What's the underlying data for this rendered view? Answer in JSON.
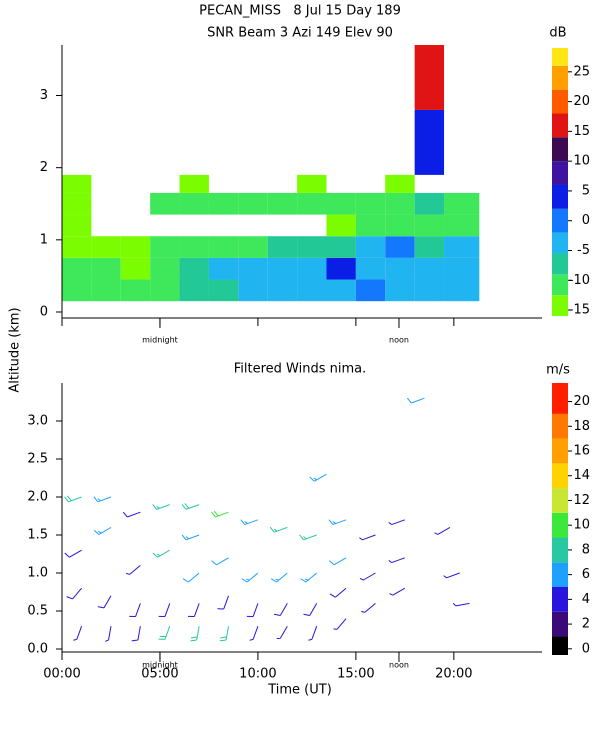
{
  "chart_data": [
    {
      "type": "heatmap",
      "title": "PECAN_MISS   8 Jul 15 Day 189",
      "subtitle": "SNR Beam 3 Azi 149 Elev 90",
      "ylabel": "Altitude (km)",
      "xlim": [
        0,
        24.5
      ],
      "ylim": [
        0,
        3.7
      ],
      "yticks": [
        0,
        1,
        2,
        3
      ],
      "x_edges": [
        0,
        1.5,
        3,
        4.5,
        6,
        7.5,
        9,
        10.5,
        12,
        13.5,
        15,
        16.5,
        18,
        19.5,
        21.3
      ],
      "y_edges": [
        0.15,
        0.45,
        0.75,
        1.05,
        1.35,
        1.65,
        1.9,
        2.8,
        3.7
      ],
      "z": [
        [
          -10,
          -10,
          -12,
          -10,
          -8,
          -7,
          -5,
          -5,
          -5,
          -3,
          0,
          -5,
          -5,
          -5
        ],
        [
          -12,
          -12,
          -13,
          -10,
          -8,
          -5,
          -5,
          -5,
          -3,
          2,
          -5,
          -5,
          -5,
          -5
        ],
        [
          -13,
          -13,
          -14,
          -12,
          -10,
          -10,
          -10,
          -7,
          -7,
          -7,
          -5,
          0,
          -7,
          -3
        ],
        [
          -14,
          null,
          null,
          null,
          null,
          null,
          null,
          null,
          null,
          -14,
          -12,
          -10,
          -10,
          -12
        ],
        [
          -14,
          null,
          null,
          -12,
          -12,
          -12,
          -12,
          -12,
          -12,
          -12,
          -12,
          -10,
          -8,
          -12
        ],
        [
          -15,
          null,
          null,
          null,
          -14,
          null,
          null,
          null,
          -15,
          null,
          null,
          -14,
          null,
          null
        ],
        [
          null,
          null,
          null,
          null,
          null,
          null,
          null,
          null,
          null,
          null,
          null,
          null,
          5,
          null
        ],
        [
          null,
          null,
          null,
          null,
          null,
          null,
          null,
          null,
          null,
          null,
          null,
          null,
          15,
          null
        ]
      ],
      "annotations": [
        {
          "x": 5.0,
          "text": "midnight"
        },
        {
          "x": 17.2,
          "text": "noon"
        }
      ],
      "colorbar": {
        "label": "dB",
        "lim": [
          -16,
          29
        ],
        "ticks": [
          -15,
          -10,
          -5,
          0,
          5,
          10,
          15,
          20,
          25
        ],
        "levels": [
          -16,
          -12.5,
          -9,
          -5.5,
          -2,
          2,
          6,
          10,
          14,
          18,
          22,
          26,
          29
        ],
        "colors": [
          "#7cfc00",
          "#3ee85a",
          "#22c896",
          "#20b4f0",
          "#1478ff",
          "#0a1ee6",
          "#3c14a0",
          "#3c0a50",
          "#e01414",
          "#ff5a00",
          "#ffa000",
          "#ffe614"
        ]
      }
    },
    {
      "type": "barbs",
      "title": "Filtered Winds nima.",
      "xlabel": "Time (UT)",
      "xlim": [
        0,
        24.5
      ],
      "ylim": [
        0,
        3.5
      ],
      "xticks": [
        {
          "value": 0,
          "label": "00:00"
        },
        {
          "value": 5,
          "label": "05:00"
        },
        {
          "value": 10,
          "label": "10:00"
        },
        {
          "value": 15,
          "label": "15:00"
        },
        {
          "value": 20,
          "label": "20:00"
        }
      ],
      "yticks": [
        {
          "value": 0,
          "label": "0.0"
        },
        {
          "value": 0.5,
          "label": "0.5"
        },
        {
          "value": 1,
          "label": "1.0"
        },
        {
          "value": 1.5,
          "label": "1.5"
        },
        {
          "value": 2,
          "label": "2.0"
        },
        {
          "value": 2.5,
          "label": "2.5"
        },
        {
          "value": 3,
          "label": "3.0"
        }
      ],
      "x": [
        1,
        1,
        1,
        1,
        2.5,
        2.5,
        2.5,
        2.5,
        4,
        4,
        4,
        4,
        5.5,
        5.5,
        5.5,
        5.5,
        7,
        7,
        7,
        7,
        7,
        8.5,
        8.5,
        8.5,
        8.5,
        10,
        10,
        10,
        10,
        11.5,
        11.5,
        11.5,
        11.5,
        13,
        13,
        13,
        13,
        13.5,
        14.5,
        14.5,
        14.5,
        14.5,
        16,
        16,
        16,
        17.5,
        17.5,
        17.5,
        18.5,
        19.8,
        20.3,
        20.8
      ],
      "y": [
        0.3,
        0.8,
        1.3,
        2.0,
        0.3,
        0.7,
        1.6,
        2.0,
        0.3,
        0.6,
        1.1,
        1.8,
        0.3,
        0.6,
        1.3,
        1.9,
        0.3,
        0.6,
        1.0,
        1.5,
        1.9,
        0.3,
        0.7,
        1.2,
        1.8,
        0.3,
        0.6,
        1.0,
        1.7,
        0.3,
        0.6,
        1.0,
        1.6,
        0.3,
        0.6,
        1.0,
        1.5,
        2.3,
        0.4,
        0.8,
        1.2,
        1.7,
        0.6,
        1.0,
        1.5,
        0.8,
        1.2,
        1.7,
        3.3,
        1.6,
        1.0,
        0.6
      ],
      "speed": [
        3,
        4,
        4,
        8,
        3,
        4,
        6,
        6,
        4,
        4,
        3,
        4,
        8,
        4,
        7,
        7,
        8,
        4,
        5,
        6,
        8,
        8,
        4,
        5,
        9,
        3,
        4,
        6,
        6,
        3,
        4,
        6,
        7,
        3,
        4,
        6,
        7,
        6,
        3,
        4,
        5,
        6,
        3,
        3,
        3,
        3,
        3,
        3,
        5,
        3,
        3,
        3
      ],
      "direction": [
        200,
        220,
        240,
        250,
        190,
        210,
        240,
        250,
        190,
        200,
        230,
        250,
        200,
        200,
        240,
        250,
        190,
        200,
        230,
        250,
        250,
        190,
        200,
        240,
        250,
        200,
        200,
        230,
        250,
        210,
        210,
        230,
        250,
        200,
        210,
        230,
        250,
        240,
        220,
        230,
        240,
        250,
        230,
        240,
        250,
        240,
        250,
        250,
        250,
        240,
        250,
        260
      ],
      "annotations": [
        {
          "x": 5.0,
          "text": "midnight"
        },
        {
          "x": 17.2,
          "text": "noon"
        }
      ],
      "colorbar": {
        "label": "m/s",
        "lim": [
          -0.5,
          21.5
        ],
        "ticks": [
          0,
          2,
          4,
          6,
          8,
          10,
          12,
          14,
          16,
          18,
          20
        ],
        "levels": [
          -0.5,
          1,
          3,
          5,
          7,
          9,
          11,
          13,
          15,
          17,
          19,
          21.5
        ],
        "colors": [
          "#000000",
          "#3c0a78",
          "#2814dc",
          "#1ea0ff",
          "#28c8a0",
          "#3ce83c",
          "#c8e632",
          "#ffd200",
          "#ffa000",
          "#ff7800",
          "#ff1e00"
        ]
      }
    }
  ]
}
